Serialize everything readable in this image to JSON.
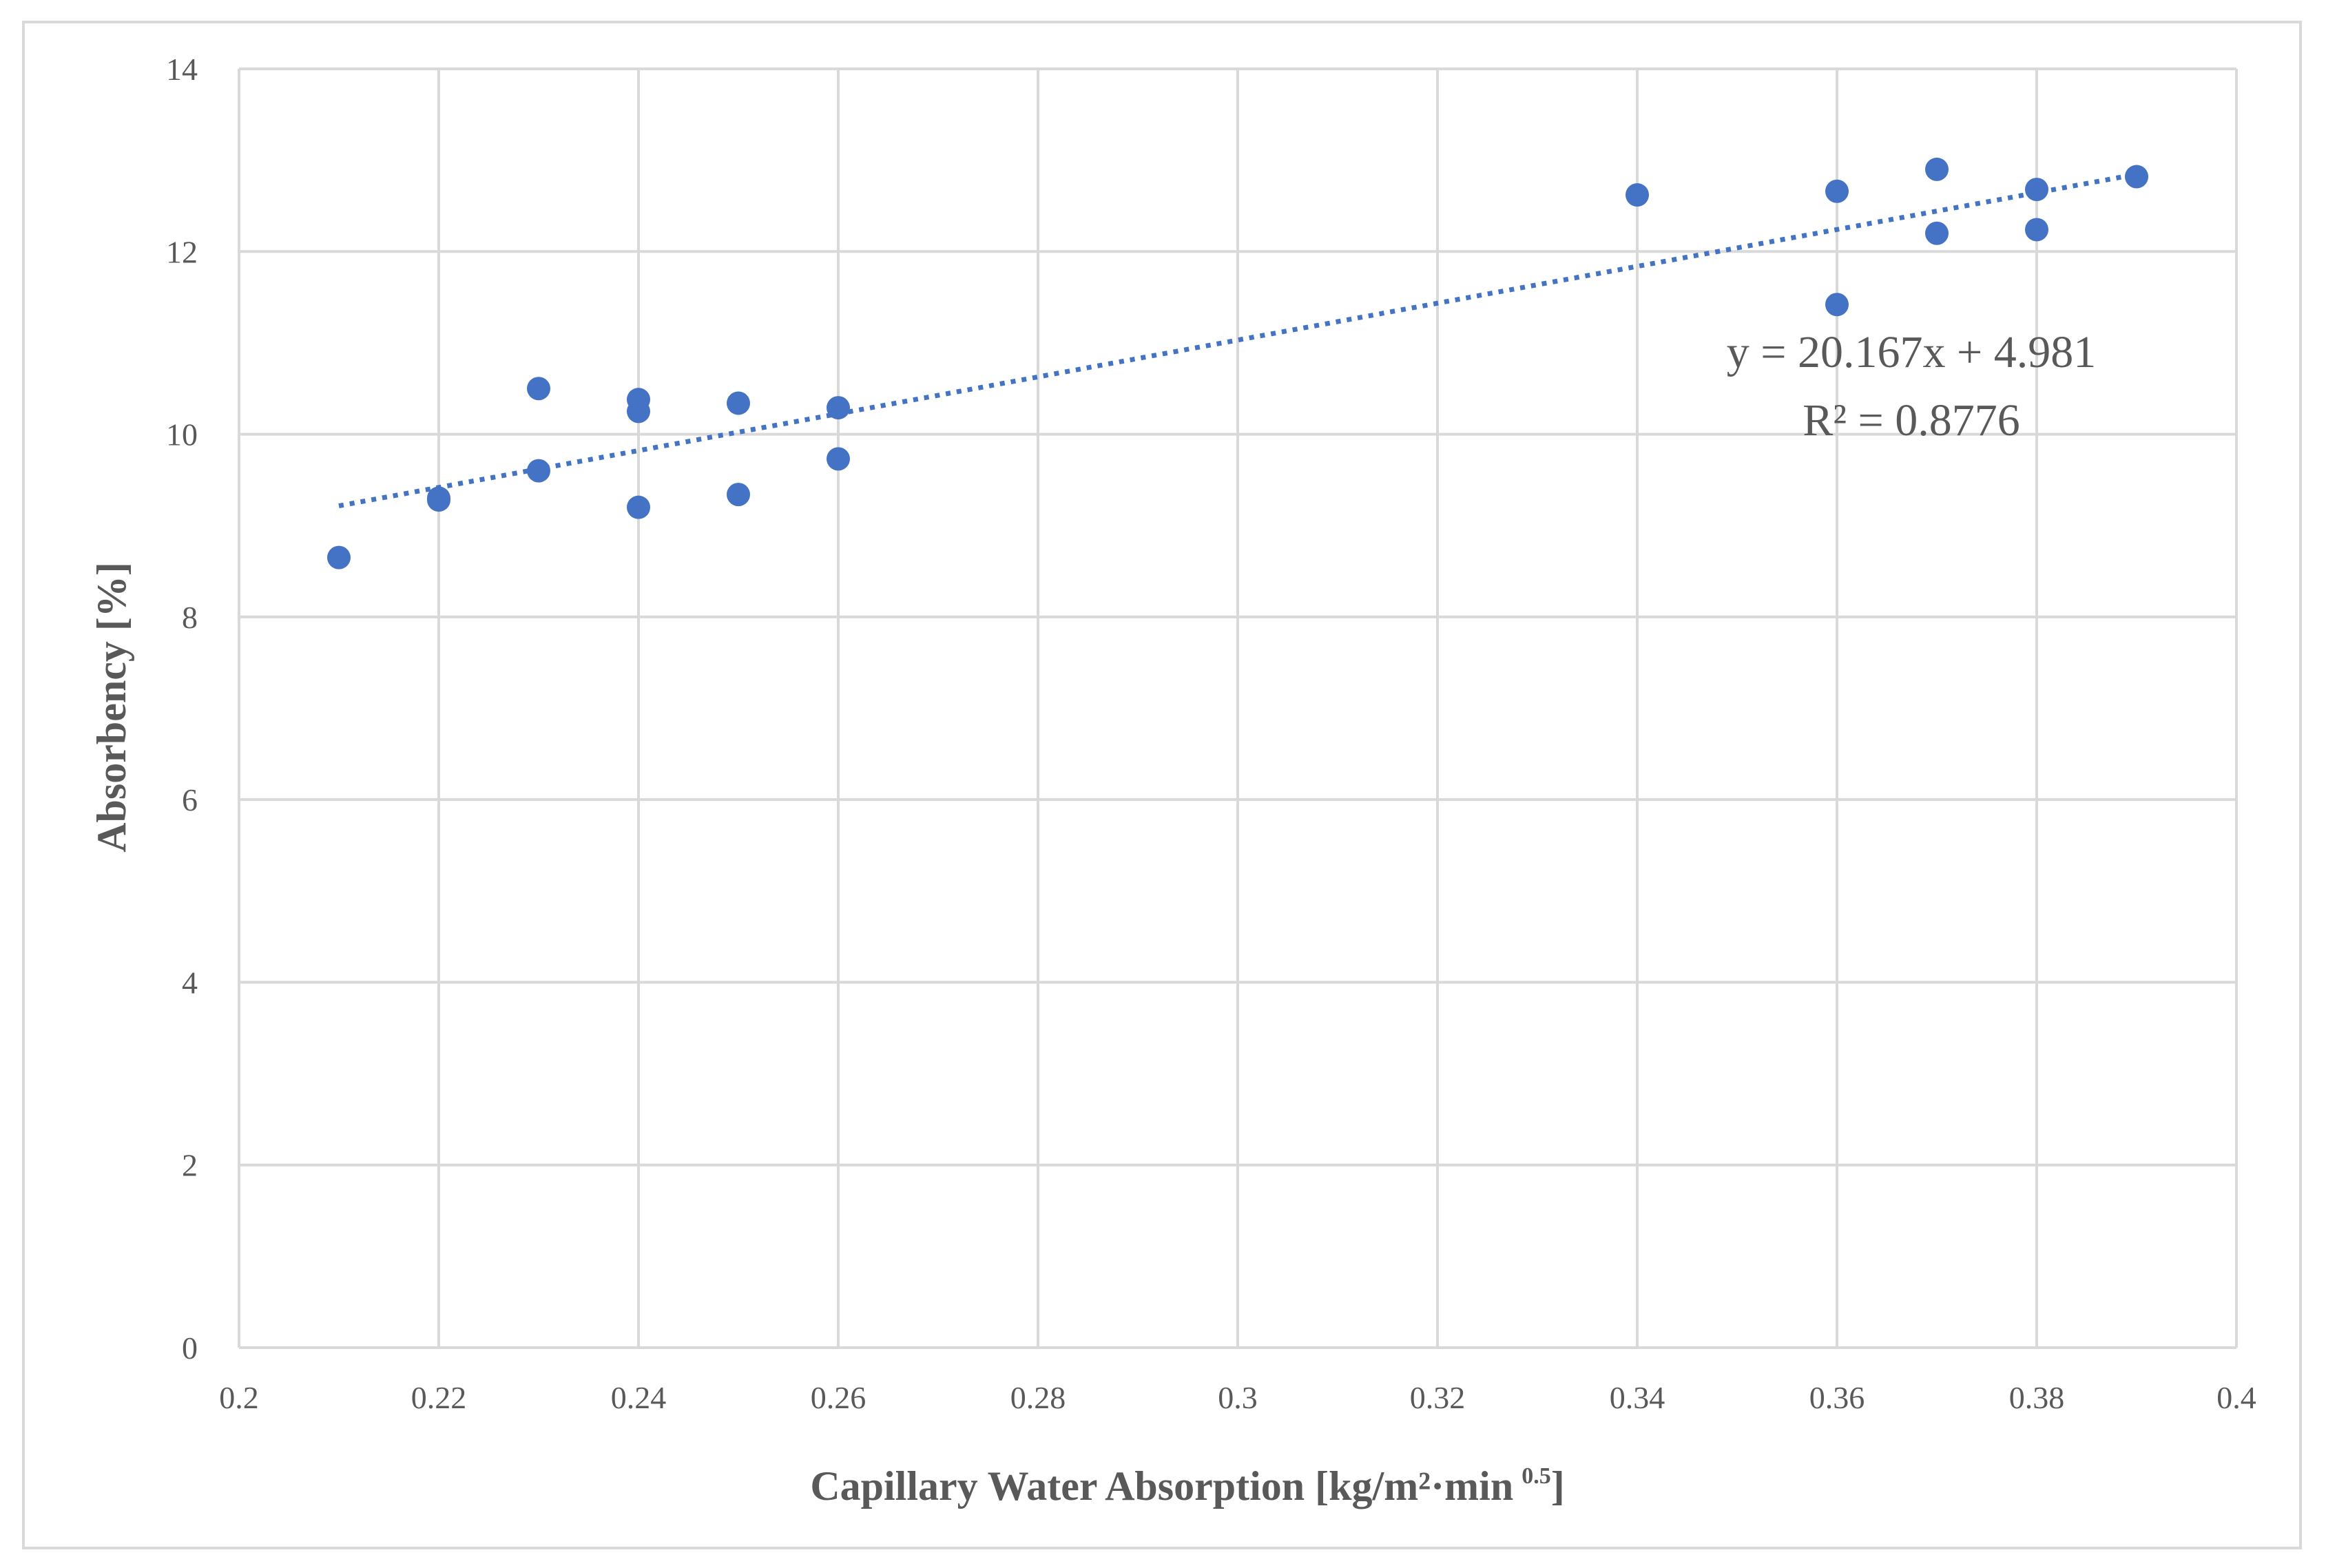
{
  "chart_data": {
    "type": "scatter",
    "title": "",
    "xlabel": "Capillary Water Absorption [kg/m²·min",
    "xlabel_sup": "0.5",
    "xlabel_close": "]",
    "ylabel": "Absorbency [%]",
    "xlim": [
      0.2,
      0.4
    ],
    "ylim": [
      0,
      14
    ],
    "xticks": [
      "0.2",
      "0.22",
      "0.24",
      "0.26",
      "0.28",
      "0.3",
      "0.32",
      "0.34",
      "0.36",
      "0.38",
      "0.4"
    ],
    "yticks": [
      "0",
      "2",
      "4",
      "6",
      "8",
      "10",
      "12",
      "14"
    ],
    "grid": true,
    "series": [
      {
        "color": "#4472C4",
        "points": [
          [
            0.21,
            8.65
          ],
          [
            0.22,
            9.3
          ],
          [
            0.22,
            9.28
          ],
          [
            0.23,
            10.5
          ],
          [
            0.23,
            9.6
          ],
          [
            0.24,
            10.38
          ],
          [
            0.24,
            10.25
          ],
          [
            0.24,
            9.2
          ],
          [
            0.25,
            10.34
          ],
          [
            0.25,
            9.34
          ],
          [
            0.26,
            10.29
          ],
          [
            0.26,
            9.73
          ],
          [
            0.34,
            12.62
          ],
          [
            0.36,
            12.66
          ],
          [
            0.36,
            11.42
          ],
          [
            0.37,
            12.9
          ],
          [
            0.37,
            12.2
          ],
          [
            0.38,
            12.68
          ],
          [
            0.38,
            12.24
          ],
          [
            0.39,
            12.82
          ]
        ]
      }
    ],
    "trendline": {
      "type": "linear",
      "slope": 20.167,
      "intercept": 4.981,
      "x_range": [
        0.21,
        0.39
      ],
      "style": "dotted",
      "color": "#4472C4",
      "equation_label": "y = 20.167x + 4.981",
      "r2_label": "R² = 0.8776"
    }
  }
}
